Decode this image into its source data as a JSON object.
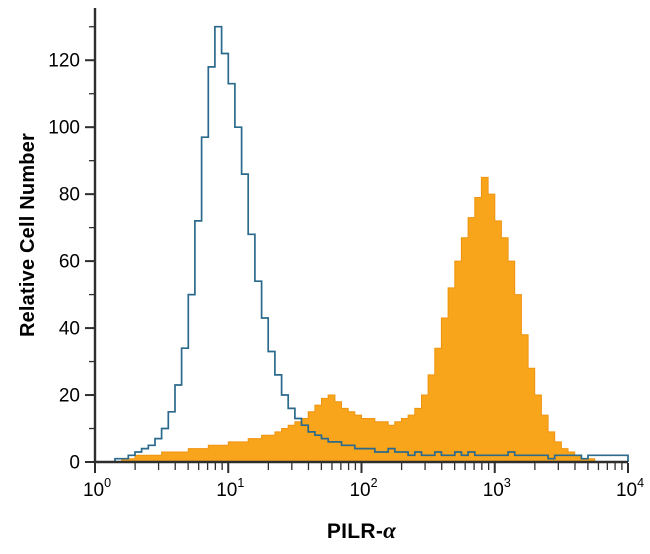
{
  "chart_data": {
    "type": "histogram-overlay",
    "title": "",
    "xlabel": "PILR-α",
    "xlabel_prefix": "PILR-",
    "xlabel_symbol": "α",
    "ylabel": "Relative Cell Number",
    "x_scale": "log10",
    "x_range_log": [
      0,
      4
    ],
    "x_tick_base": "10",
    "x_tick_exponents": [
      0,
      1,
      2,
      3,
      4
    ],
    "y_range": [
      0,
      135
    ],
    "y_ticks": [
      0,
      20,
      40,
      60,
      80,
      100,
      120
    ],
    "y_minor_ticks": [
      10,
      30,
      50,
      70,
      90,
      110,
      130
    ],
    "grid": "off",
    "legend": "none",
    "axis_color": "#2e2e2e",
    "bin_log_start": 0,
    "bin_log_step": 0.05,
    "series": [
      {
        "name": "filled-histogram-stained",
        "style": "filled",
        "fill": "#F9A51B",
        "edge": "#EF9310",
        "values": [
          0,
          0,
          0,
          0,
          1,
          1,
          2,
          2,
          2,
          2,
          3,
          3,
          3,
          3,
          4,
          4,
          4,
          5,
          5,
          5,
          6,
          6,
          6,
          7,
          7,
          8,
          8,
          9,
          10,
          11,
          12,
          13,
          15,
          17,
          19,
          20,
          18,
          16,
          15,
          14,
          13,
          13,
          12,
          12,
          11,
          12,
          13,
          14,
          16,
          20,
          26,
          34,
          43,
          52,
          60,
          67,
          73,
          79,
          85,
          80,
          72,
          67,
          60,
          50,
          38,
          28,
          20,
          14,
          9,
          6,
          4,
          3,
          2,
          1,
          1,
          0,
          0,
          0,
          0,
          0
        ]
      },
      {
        "name": "open-histogram-control",
        "style": "outline",
        "color": "#2B6A8C",
        "values": [
          0,
          0,
          0,
          1,
          1,
          2,
          3,
          4,
          5,
          7,
          10,
          15,
          23,
          34,
          50,
          72,
          97,
          118,
          130,
          122,
          113,
          100,
          86,
          68,
          54,
          43,
          33,
          26,
          20,
          16,
          13,
          11,
          9,
          8,
          7,
          6,
          6,
          5,
          5,
          4,
          4,
          4,
          3,
          3,
          4,
          3,
          3,
          2,
          3,
          2,
          2,
          3,
          2,
          2,
          3,
          2,
          3,
          2,
          2,
          2,
          2,
          2,
          3,
          2,
          2,
          2,
          2,
          2,
          1,
          2,
          2,
          2,
          2,
          1,
          2,
          2,
          2,
          2,
          2,
          2
        ]
      }
    ]
  }
}
